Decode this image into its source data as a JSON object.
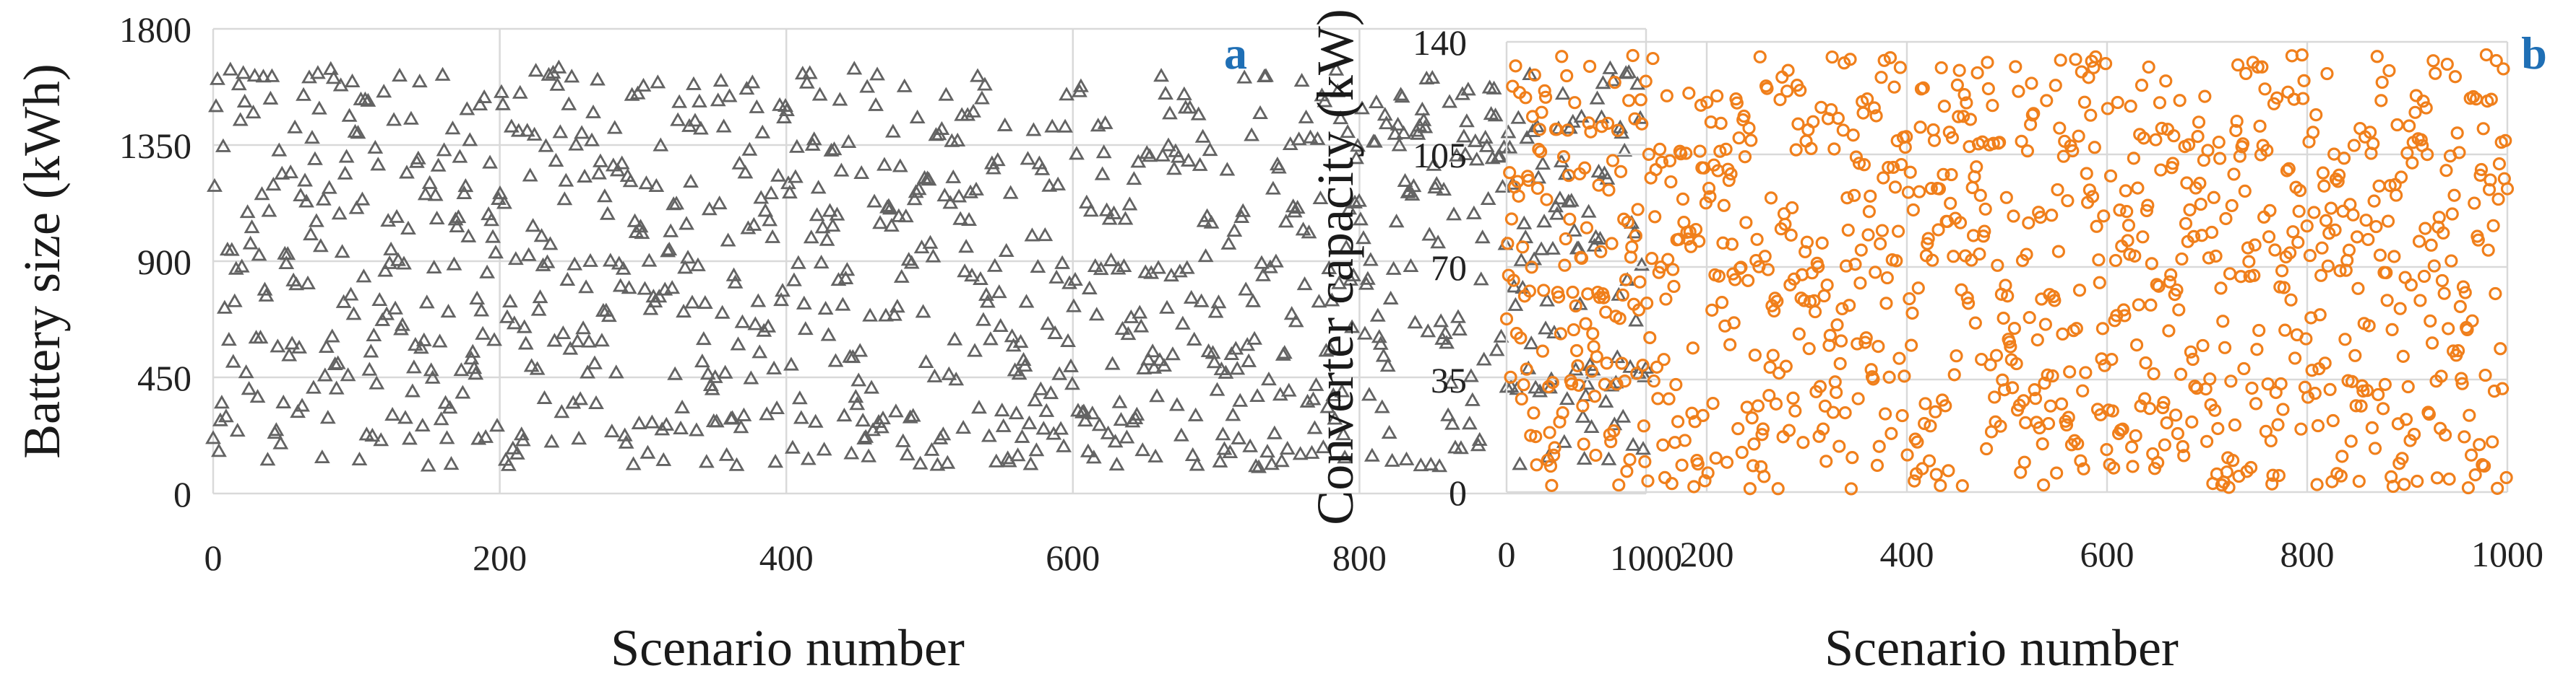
{
  "chart_data": [
    {
      "type": "scatter",
      "panel_label": "a",
      "title": "",
      "xlabel": "Scenario number",
      "ylabel": "Battery size (kWh)",
      "xlim": [
        0,
        1000
      ],
      "ylim": [
        0,
        1800
      ],
      "xticks": [
        "0",
        "200",
        "400",
        "600",
        "800",
        "1000"
      ],
      "yticks": [
        "0",
        "450",
        "900",
        "1350",
        "1800"
      ],
      "grid": true,
      "marker": "triangle-open",
      "color": "#636363",
      "series": [
        {
          "name": "Battery size",
          "n_points": 1000,
          "x_min": 0,
          "x_max": 1000,
          "y_min": 100,
          "y_max": 1650
        }
      ]
    },
    {
      "type": "scatter",
      "panel_label": "b",
      "title": "",
      "xlabel": "Scenario number",
      "ylabel": "Converter capacity (kW)",
      "xlim": [
        0,
        1000
      ],
      "ylim": [
        0,
        140
      ],
      "xticks": [
        "0",
        "200",
        "400",
        "600",
        "800",
        "1000"
      ],
      "yticks": [
        "0",
        "35",
        "70",
        "105",
        "140"
      ],
      "grid": true,
      "marker": "circle-open",
      "color": "#f07f1b",
      "series": [
        {
          "name": "Converter capacity",
          "n_points": 1000,
          "x_min": 0,
          "x_max": 1000,
          "y_min": 1,
          "y_max": 136
        }
      ]
    }
  ]
}
